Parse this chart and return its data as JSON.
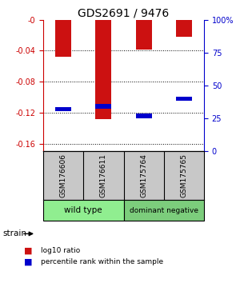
{
  "title": "GDS2691 / 9476",
  "samples": [
    "GSM176606",
    "GSM176611",
    "GSM175764",
    "GSM175765"
  ],
  "log10_ratios": [
    -0.048,
    -0.128,
    -0.038,
    -0.022
  ],
  "percentile_ranks": [
    0.32,
    0.34,
    0.27,
    0.4
  ],
  "ylim_left": [
    -0.17,
    0.0
  ],
  "ylim_right": [
    0.0,
    1.0
  ],
  "yticks_left": [
    0,
    -0.04,
    -0.08,
    -0.12,
    -0.16
  ],
  "yticks_right": [
    0,
    0.25,
    0.5,
    0.75,
    1.0
  ],
  "ytick_labels_left": [
    "-0",
    "-0.04",
    "-0.08",
    "-0.12",
    "-0.16"
  ],
  "ytick_labels_right": [
    "0",
    "25",
    "50",
    "75",
    "100%"
  ],
  "group1_label": "wild type",
  "group2_label": "dominant negative",
  "group1_color": "#90EE90",
  "group2_color": "#7CCD7C",
  "strain_label": "strain",
  "bar_color": "#CC1111",
  "marker_color": "#0000CC",
  "bar_width": 0.4,
  "sample_box_color": "#C8C8C8",
  "background_color": "#FFFFFF",
  "left_axis_color": "#CC0000",
  "right_axis_color": "#0000CC",
  "legend_red_label": "log10 ratio",
  "legend_blue_label": "percentile rank within the sample"
}
